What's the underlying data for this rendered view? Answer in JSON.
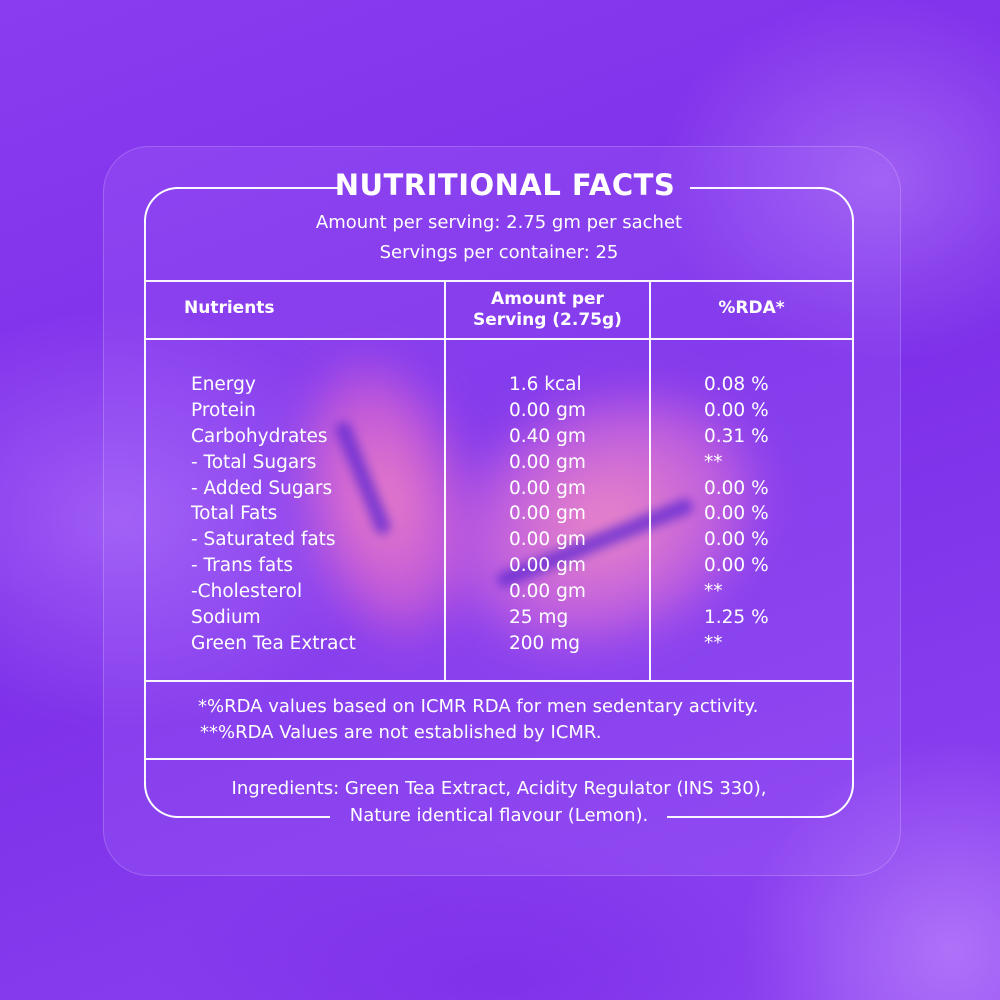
{
  "title": "NUTRITIONAL FACTS",
  "amount_per_serving": "Amount per serving: 2.75 gm per sachet",
  "servings_per_container": "Servings per container: 25",
  "table": {
    "headers": {
      "nutrients": "Nutrients",
      "amount_line1": "Amount per",
      "amount_line2": "Serving (2.75g)",
      "rda": "%RDA*"
    },
    "rows": [
      {
        "nutrient": "Energy",
        "amount": "1.6 kcal",
        "rda": "0.08 %"
      },
      {
        "nutrient": "Protein",
        "amount": "0.00 gm",
        "rda": "0.00 %"
      },
      {
        "nutrient": "Carbohydrates",
        "amount": "0.40 gm",
        "rda": "0.31 %"
      },
      {
        "nutrient": "- Total Sugars",
        "amount": "0.00 gm",
        "rda": "**"
      },
      {
        "nutrient": "- Added Sugars",
        "amount": "0.00 gm",
        "rda": "0.00 %"
      },
      {
        "nutrient": "Total Fats",
        "amount": "0.00 gm",
        "rda": "0.00 %"
      },
      {
        "nutrient": "- Saturated fats",
        "amount": "0.00 gm",
        "rda": "0.00 %"
      },
      {
        "nutrient": "- Trans fats",
        "amount": "0.00 gm",
        "rda": "0.00 %"
      },
      {
        "nutrient": "-Cholesterol",
        "amount": "0.00 gm",
        "rda": "**"
      },
      {
        "nutrient": "Sodium",
        "amount": "25 mg",
        "rda": "1.25 %"
      },
      {
        "nutrient": "Green Tea Extract",
        "amount": "200 mg",
        "rda": "**"
      }
    ]
  },
  "notes": {
    "rda_basis": "*%RDA values based on ICMR RDA for men sedentary activity.",
    "rda_not_established": "**%RDA Values are not established by ICMR."
  },
  "ingredients": {
    "line1": "Ingredients: Green Tea Extract, Acidity Regulator (INS 330),",
    "line2": "Nature identical flavour (Lemon)."
  }
}
